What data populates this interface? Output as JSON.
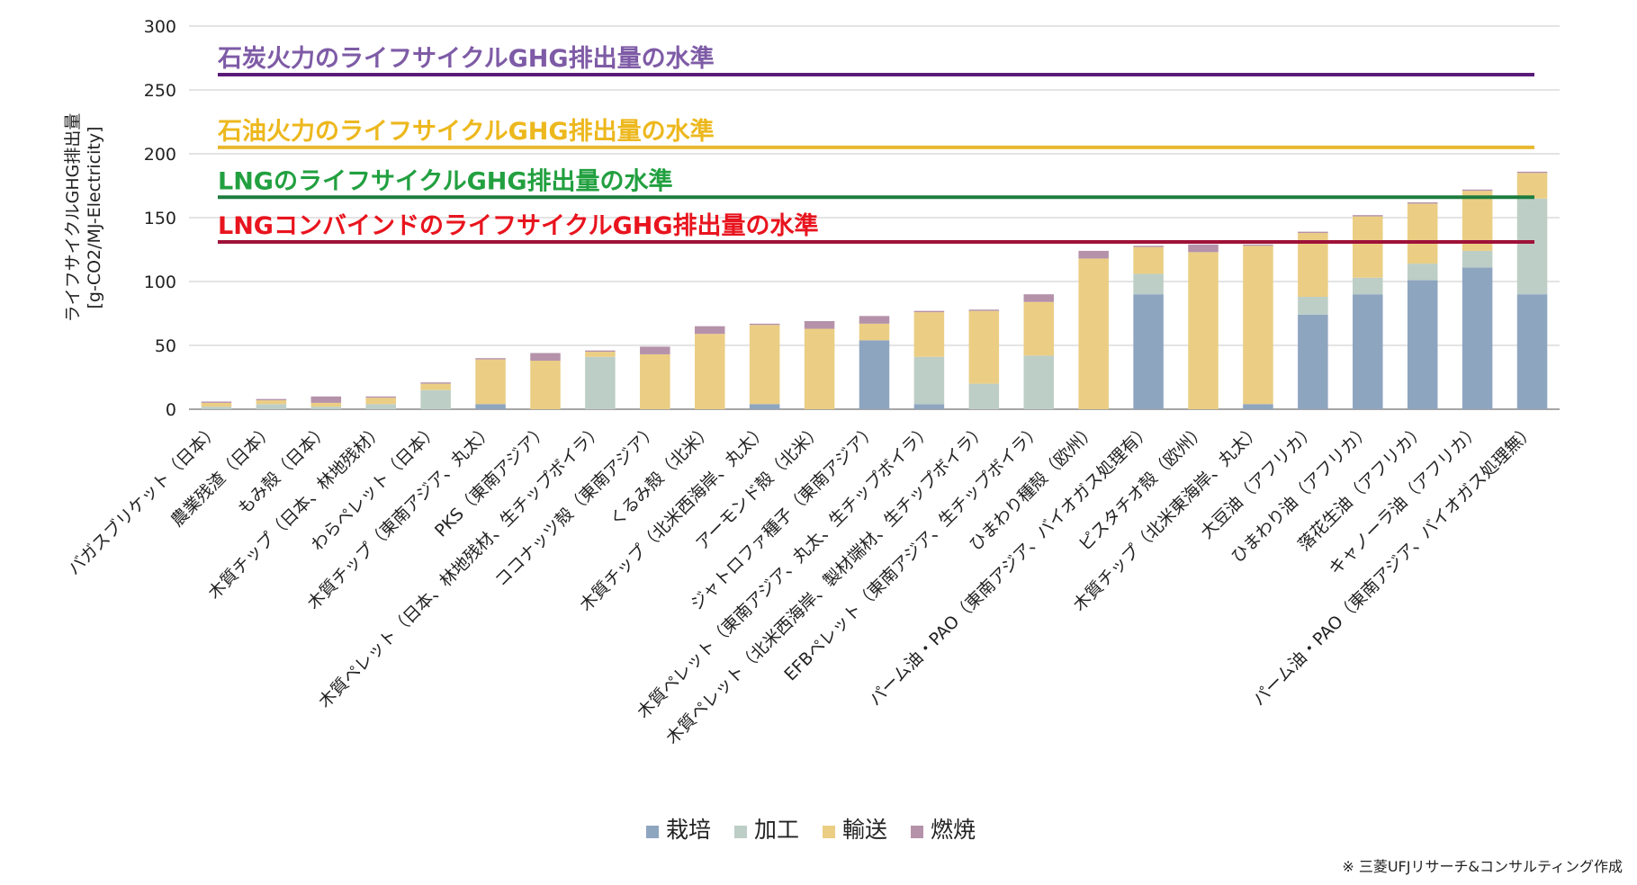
{
  "chart_data": {
    "type": "bar",
    "stacked": true,
    "ylabel": [
      "ライフサイクルGHG排出量",
      "[g-CO2/MJ-Electricity]"
    ],
    "ylim": [
      0,
      300
    ],
    "yticks": [
      0,
      50,
      100,
      150,
      200,
      250,
      300
    ],
    "grid": true,
    "legend_position": "bottom",
    "categories": [
      "バガスブリケット（日本）",
      "農業残渣（日本）",
      "もみ殻（日本）",
      "木質チップ（日本、林地残材）",
      "わらペレット（日本）",
      "木質チップ（東南アジア、丸太）",
      "PKS（東南アジア）",
      "木質ペレット（日本、林地残材、生チップボイラ）",
      "ココナッツ殻（東南アジア）",
      "くるみ殻（北米）",
      "木質チップ（北米西海岸、丸太）",
      "アーモンド殻（北米）",
      "ジャトロファ種子（東南アジア）",
      "木質ペレット（東南アジア、丸太、生チップボイラ）",
      "木質ペレット（北米西海岸、製材端材、生チップボイラ）",
      "EFBペレット（東南アジア、生チップボイラ）",
      "ひまわり種殻（欧州）",
      "パーム油・PAO（東南アジア、バイオガス処理有）",
      "ピスタチオ殻（欧州）",
      "木質チップ（北米東海岸、丸太）",
      "大豆油（アフリカ）",
      "ひまわり油（アフリカ）",
      "落花生油（アフリカ）",
      "キャノーラ油（アフリカ）",
      "パーム油・PAO（東南アジア、バイオガス処理無）"
    ],
    "series": [
      {
        "name": "栽培",
        "color": "#8EA5C0",
        "values": [
          0,
          0,
          0,
          0,
          0,
          4,
          0,
          0,
          0,
          0,
          4,
          0,
          54,
          4,
          0,
          0,
          0,
          90,
          0,
          4,
          74,
          90,
          101,
          111,
          90
        ]
      },
      {
        "name": "加工",
        "color": "#BDCEC6",
        "values": [
          2,
          4,
          2,
          4,
          15,
          0,
          0,
          41,
          0,
          0,
          0,
          0,
          0,
          37,
          20,
          42,
          0,
          16,
          0,
          0,
          14,
          13,
          13,
          13,
          75
        ]
      },
      {
        "name": "輸送",
        "color": "#EBCE84",
        "values": [
          3,
          3,
          3,
          5,
          5,
          35,
          38,
          4,
          43,
          59,
          62,
          63,
          13,
          35,
          57,
          42,
          118,
          21,
          123,
          124,
          50,
          48,
          47,
          47,
          20
        ]
      },
      {
        "name": "燃焼",
        "color": "#B592AA",
        "values": [
          1,
          1,
          5,
          1,
          1,
          1,
          6,
          1,
          6,
          6,
          1,
          6,
          6,
          1,
          1,
          6,
          6,
          1,
          6,
          1,
          1,
          1,
          1,
          1,
          1
        ]
      }
    ],
    "reference_lines": [
      {
        "label": "石炭火力のライフサイクルGHG排出量の水準",
        "value": 262,
        "color": "#5A1A78",
        "label_color": "#7E5BA6"
      },
      {
        "label": "石油火力のライフサイクルGHG排出量の水準",
        "value": 205,
        "color": "#E8B830",
        "label_color": "#EDB81E"
      },
      {
        "label": "LNGのライフサイクルGHG排出量の水準",
        "value": 166,
        "color": "#1E7C3E",
        "label_color": "#22A040"
      },
      {
        "label": "LNGコンバインドのライフサイクルGHG排出量の水準",
        "value": 131,
        "color": "#9E1238",
        "label_color": "#E8141E"
      }
    ]
  },
  "credit": "※ 三菱UFJリサーチ&コンサルティング作成"
}
